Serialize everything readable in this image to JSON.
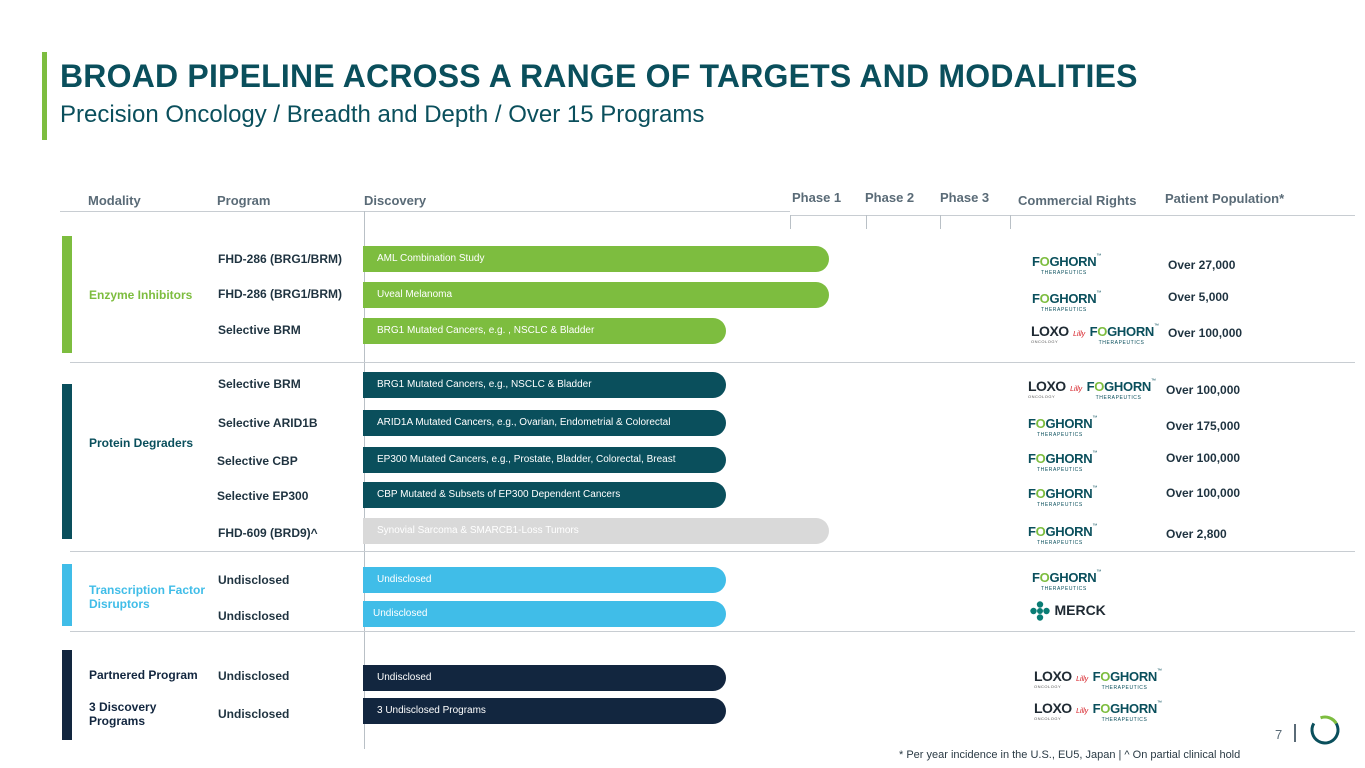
{
  "header": {
    "title": "BROAD PIPELINE ACROSS A RANGE OF TARGETS AND MODALITIES",
    "subtitle": "Precision Oncology / Breadth and Depth / Over 15 Programs"
  },
  "columns": {
    "modality": "Modality",
    "program": "Program",
    "discovery": "Discovery",
    "phase1": "Phase 1",
    "phase2": "Phase 2",
    "phase3": "Phase 3",
    "rights": "Commercial Rights",
    "population": "Patient Population*"
  },
  "groups": {
    "enzyme": {
      "label": "Enzyme Inhibitors",
      "color": "#7dbd3f"
    },
    "degraders": {
      "label": "Protein Degraders",
      "color": "#0a4f5c"
    },
    "tf": {
      "label": "Transcription Factor Disruptors",
      "color": "#40bde8"
    },
    "partnered": {
      "label": "Partnered Program",
      "color": "#12263f"
    },
    "discovery3": {
      "label": "3 Discovery Programs"
    }
  },
  "rows": [
    {
      "program": "FHD-286 (BRG1/BRM)",
      "indication": "AML Combination Study",
      "population": "Over 27,000",
      "rights": "foghorn",
      "color": "#7dbd3f"
    },
    {
      "program": "FHD-286 (BRG1/BRM)",
      "indication": "Uveal Melanoma",
      "population": "Over 5,000",
      "rights": "foghorn",
      "color": "#7dbd3f"
    },
    {
      "program": "Selective BRM",
      "indication": "BRG1 Mutated Cancers, e.g. , NSCLC & Bladder",
      "population": "Over 100,000",
      "rights": "loxo-foghorn",
      "color": "#7dbd3f"
    },
    {
      "program": "Selective BRM",
      "indication": "BRG1 Mutated Cancers, e.g., NSCLC & Bladder",
      "population": "Over 100,000",
      "rights": "loxo-foghorn",
      "color": "#0a4f5c"
    },
    {
      "program": "Selective ARID1B",
      "indication": "ARID1A Mutated Cancers, e.g., Ovarian, Endometrial & Colorectal",
      "population": "Over 175,000",
      "rights": "foghorn",
      "color": "#0a4f5c"
    },
    {
      "program": "Selective CBP",
      "indication": "EP300 Mutated Cancers, e.g., Prostate, Bladder, Colorectal, Breast",
      "population": "Over 100,000",
      "rights": "foghorn",
      "color": "#0a4f5c"
    },
    {
      "program": "Selective EP300",
      "indication": "CBP Mutated & Subsets of EP300 Dependent Cancers",
      "population": "Over 100,000",
      "rights": "foghorn",
      "color": "#0a4f5c"
    },
    {
      "program": "FHD-609 (BRD9)^",
      "indication": "Synovial Sarcoma & SMARCB1-Loss Tumors",
      "population": "Over 2,800",
      "rights": "foghorn",
      "color": "#d9d9d9"
    },
    {
      "program": "Undisclosed",
      "indication": "Undisclosed",
      "population": "",
      "rights": "foghorn",
      "color": "#40bde8"
    },
    {
      "program": "Undisclosed",
      "indication": "Undisclosed",
      "population": "",
      "rights": "merck",
      "color": "#40bde8"
    },
    {
      "program": "Undisclosed",
      "indication": "Undisclosed",
      "population": "",
      "rights": "loxo-foghorn",
      "color": "#12263f"
    },
    {
      "program": "Undisclosed",
      "indication": "3 Undisclosed Programs",
      "population": "",
      "rights": "loxo-foghorn",
      "color": "#12263f"
    }
  ],
  "logos": {
    "foghorn": "FOGHORN",
    "foghorn_sub": "THERAPEUTICS",
    "loxo": "LOXO",
    "loxo_sub": "ONCOLOGY",
    "lilly": "Lilly",
    "merck": "MERCK"
  },
  "footer": {
    "footnote": "* Per year incidence in the U.S., EU5, Japan | ^ On partial clinical hold",
    "page_number": "7"
  }
}
